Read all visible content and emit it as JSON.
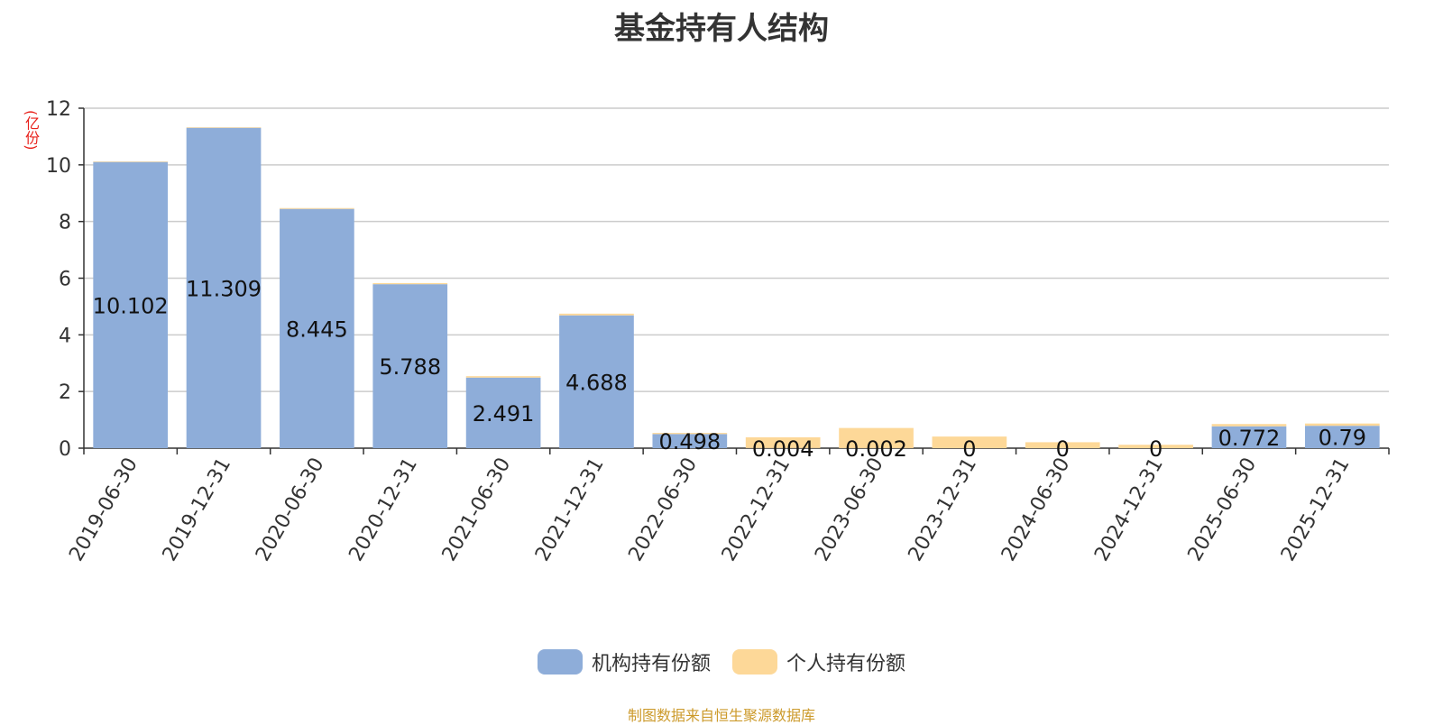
{
  "chart_data": {
    "type": "bar",
    "stacked": true,
    "title": "基金持有人结构",
    "unit_label": "(亿份)",
    "source": "制图数据来自恒生聚源数据库",
    "categories": [
      "2019-06-30",
      "2019-12-31",
      "2020-06-30",
      "2020-12-31",
      "2021-06-30",
      "2021-12-31",
      "2022-06-30",
      "2022-12-31",
      "2023-06-30",
      "2023-12-31",
      "2024-06-30",
      "2024-12-31",
      "2025-06-30",
      "2025-12-31"
    ],
    "ylim": [
      0,
      12
    ],
    "yticks": [
      0,
      2,
      4,
      6,
      8,
      10,
      12
    ],
    "grid": true,
    "legend_position": "bottom",
    "series": [
      {
        "name": "机构持有份额",
        "color": "#8eadd9",
        "values": [
          10.102,
          11.309,
          8.445,
          5.788,
          2.491,
          4.688,
          0.498,
          0.004,
          0.002,
          0,
          0,
          0,
          0.772,
          0.79
        ],
        "labels": [
          "10.102",
          "11.309",
          "8.445",
          "5.788",
          "2.491",
          "4.688",
          "0.498",
          "0.004",
          "0.002",
          "0",
          "0",
          "0",
          "0.772",
          "0.79"
        ]
      },
      {
        "name": "个人持有份额",
        "color": "#fdd898",
        "values": [
          0.02,
          0.02,
          0.03,
          0.04,
          0.05,
          0.06,
          0.04,
          0.38,
          0.71,
          0.41,
          0.21,
          0.12,
          0.08,
          0.08
        ]
      }
    ]
  }
}
